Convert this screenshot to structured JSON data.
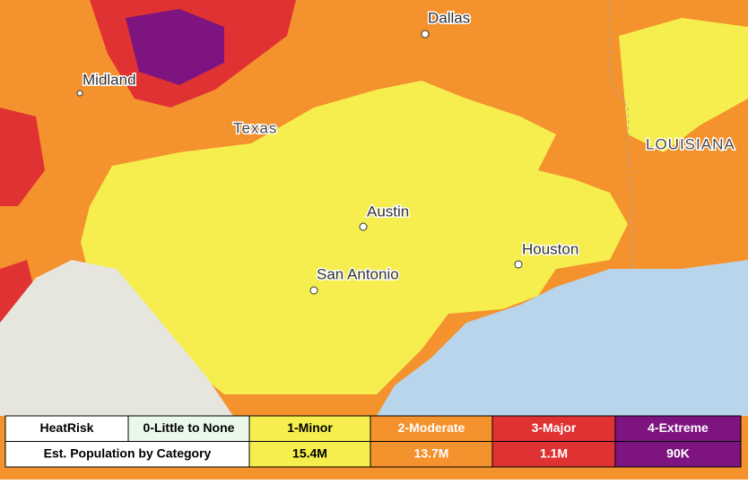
{
  "map": {
    "places": [
      {
        "label": "Dallas"
      },
      {
        "label": "Midland"
      },
      {
        "label": "Texas"
      },
      {
        "label": "Austin"
      },
      {
        "label": "LOUISIANA"
      },
      {
        "label": "Houston"
      },
      {
        "label": "San Antonio"
      }
    ]
  },
  "legend": {
    "header": [
      "HeatRisk",
      "0-Little to None",
      "1-Minor",
      "2-Moderate",
      "3-Major",
      "4-Extreme"
    ],
    "population": {
      "label": "Est. Population by Category",
      "values": [
        "15.4M",
        "13.7M",
        "1.1M",
        "90K"
      ]
    }
  }
}
